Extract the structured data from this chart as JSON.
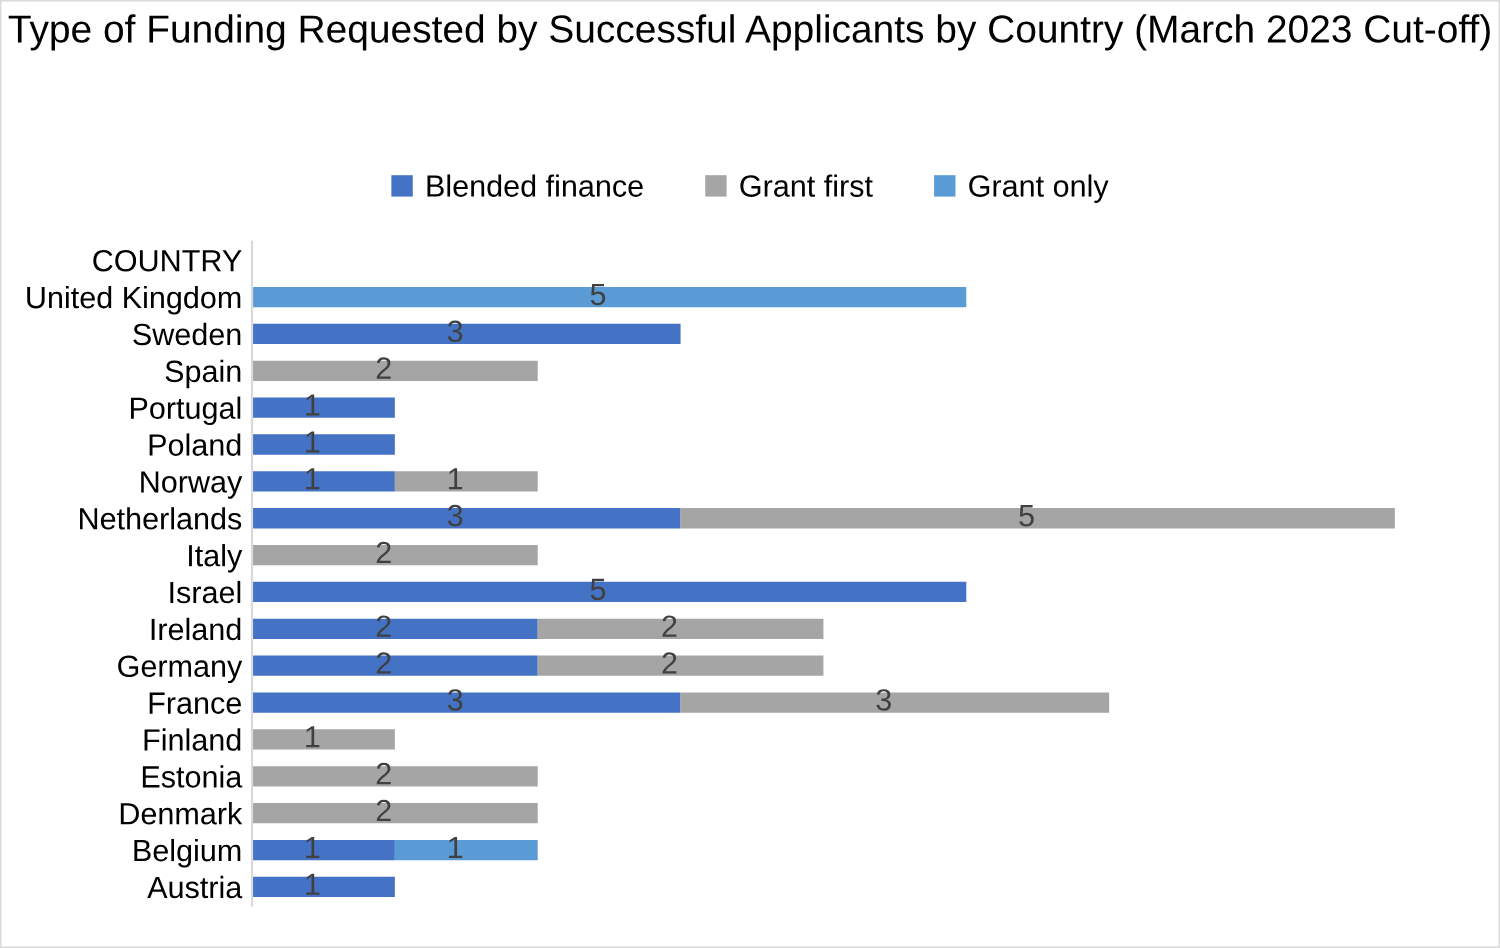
{
  "chart_data": {
    "type": "bar",
    "orientation": "horizontal",
    "stacked": true,
    "title": "Type of Funding Requested by Successful Applicants by Country (March 2023 Cut-off)",
    "categories": [
      "COUNTRY",
      "United Kingdom",
      "Sweden",
      "Spain",
      "Portugal",
      "Poland",
      "Norway",
      "Netherlands",
      "Italy",
      "Israel",
      "Ireland",
      "Germany",
      "France",
      "Finland",
      "Estonia",
      "Denmark",
      "Belgium",
      "Austria"
    ],
    "series": [
      {
        "name": "Blended finance",
        "color": "#4472c4",
        "values": [
          null,
          null,
          3,
          null,
          1,
          1,
          1,
          3,
          null,
          5,
          2,
          2,
          3,
          null,
          null,
          null,
          1,
          1
        ]
      },
      {
        "name": "Grant first",
        "color": "#a5a5a5",
        "values": [
          null,
          null,
          null,
          2,
          null,
          null,
          1,
          5,
          2,
          null,
          2,
          2,
          3,
          1,
          2,
          2,
          null,
          null
        ]
      },
      {
        "name": "Grant only",
        "color": "#5b9bd5",
        "values": [
          null,
          5,
          null,
          null,
          null,
          null,
          null,
          null,
          null,
          null,
          null,
          null,
          null,
          null,
          null,
          null,
          1,
          null
        ]
      }
    ],
    "data_labels": true,
    "legend": "top"
  }
}
